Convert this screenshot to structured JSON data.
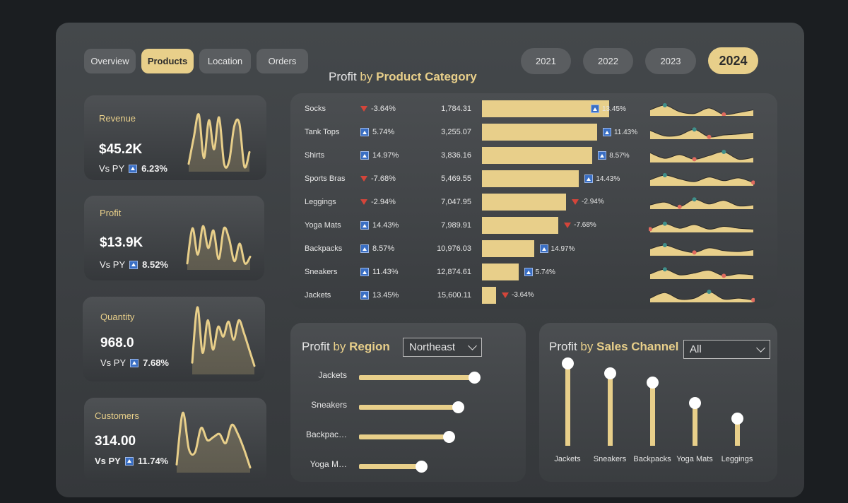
{
  "tabs": [
    {
      "label": "Overview",
      "active": false
    },
    {
      "label": "Products",
      "active": true
    },
    {
      "label": "Location",
      "active": false
    },
    {
      "label": "Orders",
      "active": false
    }
  ],
  "years": [
    {
      "label": "2021",
      "active": false
    },
    {
      "label": "2022",
      "active": false
    },
    {
      "label": "2023",
      "active": false
    },
    {
      "label": "2024",
      "active": true
    }
  ],
  "kpis": [
    {
      "label": "Revenue",
      "value": "$45.2K",
      "vs_label": "Vs PY",
      "change": "6.23%",
      "trend": [
        0.1,
        0.55,
        0.95,
        0.2,
        0.85,
        0.35,
        0.9,
        0.1,
        0.15,
        0.75,
        0.8,
        0.05,
        0.3
      ]
    },
    {
      "label": "Profit",
      "value": "$13.9K",
      "vs_label": "Vs PY",
      "change": "8.52%",
      "trend": [
        0.1,
        0.9,
        0.3,
        0.95,
        0.45,
        0.85,
        0.2,
        0.9,
        0.65,
        0.15,
        0.55,
        0.1,
        0.25
      ]
    },
    {
      "label": "Quantity",
      "value": "968.0",
      "vs_label": "Vs PY",
      "change": "7.68%",
      "trend": [
        0.15,
        1.0,
        0.3,
        0.8,
        0.35,
        0.7,
        0.55,
        0.78,
        0.5,
        0.8,
        0.6,
        0.35,
        0.1
      ]
    },
    {
      "label": "Customers",
      "value": "314.00",
      "vs_label": "Vs PY",
      "change": "11.74%",
      "trend": [
        0.1,
        0.95,
        0.35,
        0.3,
        0.7,
        0.5,
        0.55,
        0.6,
        0.45,
        0.75,
        0.6,
        0.35,
        0.05
      ]
    }
  ],
  "category": {
    "title_prefix": "Profit",
    "title_by": "by",
    "title_bold": "Product Category",
    "rows": [
      {
        "name": "Socks",
        "yoy": "-3.64%",
        "yoy_dir": "down",
        "profit": "1,784.31",
        "bar": 1784.31,
        "bar_pct": "13.45%",
        "bar_dir": "up"
      },
      {
        "name": "Tank Tops",
        "yoy": "5.74%",
        "yoy_dir": "up",
        "profit": "3,255.07",
        "bar": 3255.07,
        "bar_pct": "11.43%",
        "bar_dir": "up"
      },
      {
        "name": "Shirts",
        "yoy": "14.97%",
        "yoy_dir": "up",
        "profit": "3,836.16",
        "bar": 3836.16,
        "bar_pct": "8.57%",
        "bar_dir": "up"
      },
      {
        "name": "Sports Bras",
        "yoy": "-7.68%",
        "yoy_dir": "down",
        "profit": "5,469.55",
        "bar": 5469.55,
        "bar_pct": "14.43%",
        "bar_dir": "up"
      },
      {
        "name": "Leggings",
        "yoy": "-2.94%",
        "yoy_dir": "down",
        "profit": "7,047.95",
        "bar": 7047.95,
        "bar_pct": "-2.94%",
        "bar_dir": "down"
      },
      {
        "name": "Yoga Mats",
        "yoy": "14.43%",
        "yoy_dir": "up",
        "profit": "7,989.91",
        "bar": 7989.91,
        "bar_pct": "-7.68%",
        "bar_dir": "down"
      },
      {
        "name": "Backpacks",
        "yoy": "8.57%",
        "yoy_dir": "up",
        "profit": "10,976.03",
        "bar": 10976.03,
        "bar_pct": "14.97%",
        "bar_dir": "up"
      },
      {
        "name": "Sneakers",
        "yoy": "11.43%",
        "yoy_dir": "up",
        "profit": "12,874.61",
        "bar": 12874.61,
        "bar_pct": "5.74%",
        "bar_dir": "up"
      },
      {
        "name": "Jackets",
        "yoy": "13.45%",
        "yoy_dir": "up",
        "profit": "15,600.11",
        "bar": 15600.11,
        "bar_pct": "-3.64%",
        "bar_dir": "down"
      }
    ]
  },
  "region": {
    "title_prefix": "Profit",
    "title_by": "by",
    "title_bold": "Region",
    "selected": "Northeast",
    "items": [
      {
        "label": "Jackets",
        "value": 1.0
      },
      {
        "label": "Sneakers",
        "value": 0.86
      },
      {
        "label": "Backpac…",
        "value": 0.78
      },
      {
        "label": "Yoga M…",
        "value": 0.54
      }
    ]
  },
  "channel": {
    "title_prefix": "Profit",
    "title_by": "by",
    "title_bold": "Sales Channel",
    "selected": "All",
    "items": [
      {
        "label": "Jackets",
        "value": 1.0
      },
      {
        "label": "Sneakers",
        "value": 0.88
      },
      {
        "label": "Backpacks",
        "value": 0.77
      },
      {
        "label": "Yoga Mats",
        "value": 0.52
      },
      {
        "label": "Leggings",
        "value": 0.33
      }
    ]
  },
  "colors": {
    "accent": "#e8cf8a",
    "up": "#3a6fc4",
    "down": "#d4453a",
    "teal_dot": "#3f8f8a",
    "red_dot": "#e06a5e"
  }
}
